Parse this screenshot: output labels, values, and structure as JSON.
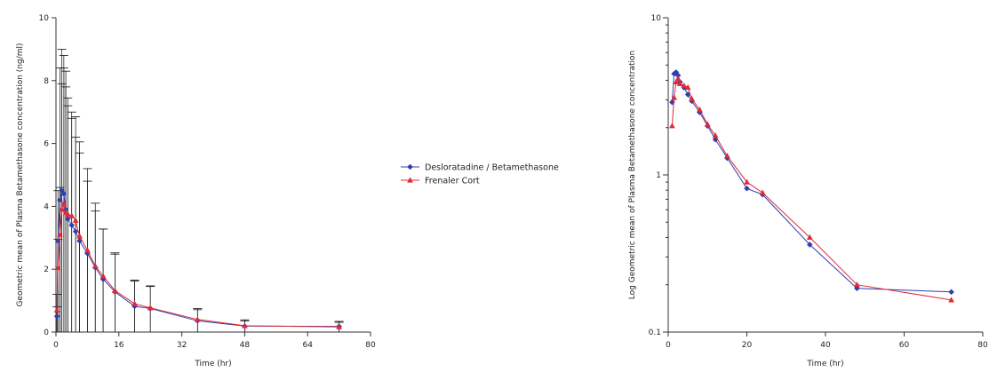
{
  "legend": {
    "series": [
      {
        "name": "Desloratadine / Betamethasone",
        "color": "#2e3fb0",
        "marker": "diamond"
      },
      {
        "name": "Frenaler Cort",
        "color": "#e02a35",
        "marker": "triangle"
      }
    ]
  },
  "chart_data": [
    {
      "type": "line",
      "xlabel": "Time (hr)",
      "ylabel": "Geometric mean of Plasma Betamethasone concentration (ng/ml)",
      "xlim": [
        0,
        80
      ],
      "ylim": [
        0,
        10
      ],
      "xticks": [
        "0",
        "16",
        "32",
        "48",
        "64",
        "80"
      ],
      "yticks": [
        "0",
        "2",
        "4",
        "6",
        "8",
        "10"
      ],
      "grid": false,
      "error_bars": true,
      "series": [
        {
          "name": "Desloratadine / Betamethasone",
          "color": "#2e3fb0",
          "x": [
            0.25,
            0.5,
            1,
            1.5,
            2,
            2.5,
            3,
            4,
            5,
            6,
            8,
            10,
            12,
            15,
            20,
            24,
            36,
            48,
            72
          ],
          "y": [
            0.5,
            2.9,
            4.2,
            4.5,
            4.4,
            3.9,
            3.6,
            3.4,
            3.2,
            2.9,
            2.5,
            2.05,
            1.68,
            1.28,
            0.82,
            0.75,
            0.36,
            0.19,
            0.18
          ],
          "err": [
            0.3,
            1.6,
            4.2,
            4.5,
            4.0,
            3.9,
            3.6,
            3.4,
            3.0,
            2.8,
            2.3,
            1.8,
            1.6,
            1.2,
            0.8,
            0.7,
            0.35,
            0.2,
            0.16
          ]
        },
        {
          "name": "Frenaler Cort",
          "color": "#e02a35",
          "x": [
            0.25,
            0.5,
            1,
            1.5,
            2,
            2.5,
            3,
            4,
            5,
            6,
            8,
            10,
            12,
            15,
            20,
            24,
            36,
            48,
            72
          ],
          "y": [
            0.7,
            2.05,
            3.1,
            3.9,
            4.1,
            3.8,
            3.75,
            3.7,
            3.55,
            3.05,
            2.6,
            2.1,
            1.78,
            1.32,
            0.9,
            0.77,
            0.4,
            0.2,
            0.16
          ],
          "err": [
            0.5,
            0.9,
            1.5,
            4.0,
            4.7,
            4.5,
            3.7,
            3.3,
            3.3,
            3.0,
            2.6,
            2.0,
            1.5,
            1.2,
            0.75,
            0.7,
            0.35,
            0.15,
            0.15
          ]
        }
      ]
    },
    {
      "type": "line",
      "xlabel": "Time (hr)",
      "ylabel": "Log Geometric mean of Plasma Betamethasone concentration",
      "xlim": [
        0,
        80
      ],
      "ylim": [
        0.1,
        10
      ],
      "yscale": "log",
      "xticks": [
        "0",
        "20",
        "40",
        "60",
        "80"
      ],
      "yticks": [
        "0.1",
        "1",
        "10"
      ],
      "grid": false,
      "series": [
        {
          "name": "Desloratadine / Betamethasone",
          "color": "#2e3fb0",
          "x": [
            1,
            1.5,
            2,
            2.5,
            3,
            4,
            5,
            6,
            8,
            10,
            12,
            15,
            20,
            24,
            36,
            48,
            72
          ],
          "y": [
            2.9,
            4.4,
            4.5,
            4.3,
            3.9,
            3.6,
            3.25,
            2.95,
            2.5,
            2.05,
            1.68,
            1.28,
            0.82,
            0.75,
            0.36,
            0.19,
            0.18
          ],
          "err": []
        },
        {
          "name": "Frenaler Cort",
          "color": "#e02a35",
          "x": [
            1,
            1.5,
            2,
            2.5,
            3,
            4,
            5,
            6,
            8,
            10,
            12,
            15,
            20,
            24,
            36,
            48,
            72
          ],
          "y": [
            2.05,
            3.1,
            3.9,
            4.1,
            3.8,
            3.7,
            3.6,
            3.05,
            2.6,
            2.1,
            1.78,
            1.32,
            0.9,
            0.77,
            0.4,
            0.2,
            0.16
          ],
          "err": []
        }
      ]
    }
  ]
}
